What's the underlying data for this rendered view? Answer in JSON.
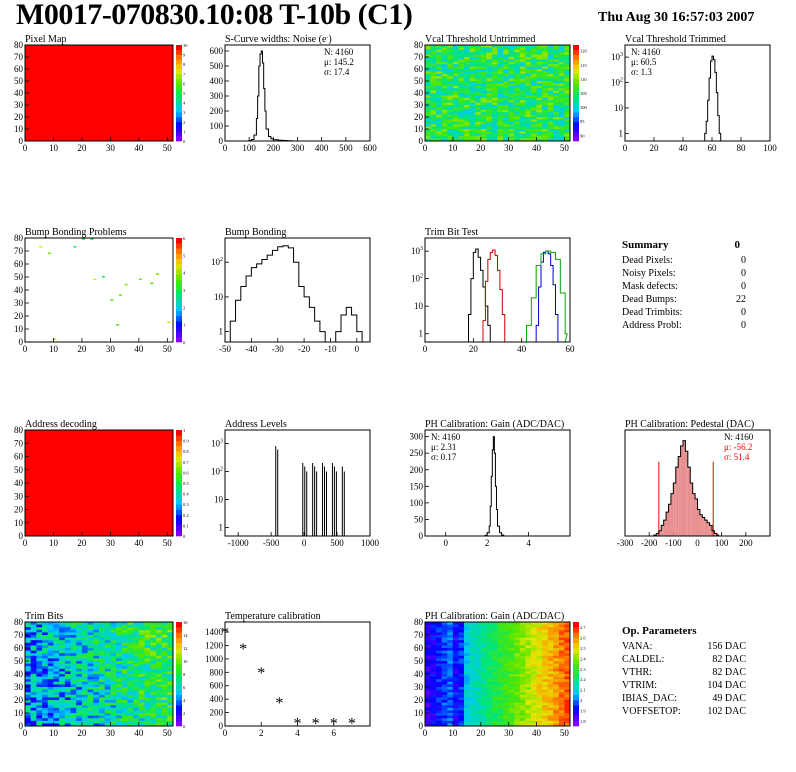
{
  "header": {
    "title": "M0017-070830.10:08 T-10b (C1)",
    "datetime": "Thu Aug 30 16:57:03 2007"
  },
  "colors": {
    "map_red": "#ff0000",
    "hist_line": "#000000",
    "mean_red": "#ff0000",
    "pedestal_fill": "#e89090"
  },
  "chart_data": [
    {
      "id": "pixel-map",
      "type": "heatmap",
      "title": "Pixel Map",
      "x": {
        "ticks": [
          0,
          10,
          20,
          30,
          40,
          50
        ],
        "range": [
          0,
          52
        ]
      },
      "y": {
        "ticks": [
          0,
          10,
          20,
          30,
          40,
          50,
          60,
          70,
          80
        ],
        "range": [
          0,
          80
        ]
      },
      "fill": "uniform",
      "colorbar": {
        "ticks": [
          0,
          1,
          2,
          3,
          4,
          5,
          6,
          7,
          8,
          9,
          10
        ],
        "range": [
          0,
          10
        ]
      }
    },
    {
      "id": "scurve",
      "type": "histogram",
      "title": "S-Curve widths: Noise (e",
      "title_sup": "-",
      "x": {
        "ticks": [
          0,
          100,
          200,
          300,
          400,
          500,
          600
        ],
        "range": [
          0,
          600
        ]
      },
      "y": {
        "ticks": [
          0,
          100,
          200,
          300,
          400,
          500,
          600
        ],
        "range": [
          0,
          640
        ]
      },
      "stats": [
        {
          "label": "N:",
          "value": "4160"
        },
        {
          "label": "μ:",
          "value": "145.2"
        },
        {
          "label": "σ:",
          "value": "17.4"
        }
      ],
      "bins_x": [
        100,
        110,
        120,
        130,
        135,
        140,
        145,
        150,
        155,
        160,
        165,
        170,
        180,
        190,
        200,
        220,
        240,
        260,
        280
      ],
      "bins_y": [
        3,
        10,
        40,
        150,
        300,
        500,
        580,
        600,
        520,
        350,
        200,
        80,
        30,
        15,
        8,
        5,
        3,
        2,
        0
      ]
    },
    {
      "id": "vcal-untrimmed",
      "type": "heatmap",
      "title": "Vcal Threshold Untrimmed",
      "x": {
        "ticks": [
          0,
          10,
          20,
          30,
          40,
          50
        ],
        "range": [
          0,
          52
        ]
      },
      "y": {
        "ticks": [
          0,
          10,
          20,
          30,
          40,
          50,
          60,
          70,
          80
        ],
        "range": [
          0,
          80
        ]
      },
      "fill": "noise-green",
      "colorbar": {
        "ticks": [
          90,
          95,
          100,
          105,
          110,
          115,
          120
        ],
        "range": [
          88,
          122
        ]
      }
    },
    {
      "id": "vcal-trimmed",
      "type": "histogram",
      "title": "Vcal Threshold Trimmed",
      "x": {
        "ticks": [
          0,
          20,
          40,
          60,
          80,
          100
        ],
        "range": [
          0,
          100
        ]
      },
      "y": {
        "ticks": [
          1,
          10,
          100,
          1000
        ],
        "log": true,
        "range": [
          0.5,
          3000
        ]
      },
      "stats": [
        {
          "label": "N:",
          "value": "4160"
        },
        {
          "label": "μ:",
          "value": "60.5"
        },
        {
          "label": "σ:",
          "value": "1.3"
        }
      ],
      "bins_x": [
        55,
        56,
        57,
        58,
        59,
        60,
        61,
        62,
        63,
        64,
        65,
        66
      ],
      "bins_y": [
        1,
        3,
        20,
        150,
        700,
        1100,
        800,
        250,
        40,
        5,
        1,
        0
      ]
    },
    {
      "id": "bump-problems",
      "type": "heatmap",
      "title": "Bump Bonding Problems",
      "x": {
        "ticks": [
          0,
          10,
          20,
          30,
          40,
          50
        ],
        "range": [
          0,
          52
        ]
      },
      "y": {
        "ticks": [
          0,
          10,
          20,
          30,
          40,
          50,
          60,
          70,
          80
        ],
        "range": [
          0,
          80
        ]
      },
      "fill": "sparse",
      "colorbar": {
        "ticks": [
          0,
          1,
          2,
          3,
          4,
          5,
          6
        ],
        "range": [
          0,
          6
        ]
      },
      "points": [
        [
          5,
          73
        ],
        [
          8,
          68
        ],
        [
          17,
          73
        ],
        [
          20,
          79
        ],
        [
          23,
          79
        ],
        [
          27,
          50
        ],
        [
          24,
          48
        ],
        [
          46,
          52
        ],
        [
          40,
          48
        ],
        [
          35,
          44
        ],
        [
          33,
          36
        ],
        [
          44,
          45
        ],
        [
          50,
          15
        ],
        [
          30,
          32
        ],
        [
          32,
          13
        ],
        [
          10,
          2
        ]
      ]
    },
    {
      "id": "bump-bonding",
      "type": "histogram",
      "title": "Bump Bonding",
      "x": {
        "ticks": [
          -50,
          -40,
          -30,
          -20,
          -10,
          0
        ],
        "range": [
          -50,
          5
        ]
      },
      "y": {
        "ticks": [
          1,
          10,
          100
        ],
        "log": true,
        "range": [
          0.5,
          500
        ]
      },
      "bins_x": [
        -48,
        -46,
        -44,
        -42,
        -40,
        -38,
        -36,
        -34,
        -32,
        -30,
        -28,
        -26,
        -24,
        -22,
        -20,
        -18,
        -16,
        -14,
        -12,
        -10,
        -8,
        -6,
        -4,
        -2,
        0,
        2
      ],
      "bins_y": [
        2,
        8,
        20,
        40,
        70,
        90,
        120,
        160,
        220,
        280,
        300,
        260,
        100,
        20,
        10,
        5,
        2,
        1,
        0,
        0,
        1,
        3,
        5,
        3,
        1,
        0
      ]
    },
    {
      "id": "trim-bit-test",
      "type": "histogram",
      "title": "Trim Bit Test",
      "x": {
        "ticks": [
          0,
          20,
          40,
          60
        ],
        "range": [
          0,
          60
        ]
      },
      "y": {
        "ticks": [
          1,
          10,
          100,
          1000
        ],
        "log": true,
        "range": [
          0.5,
          3000
        ]
      },
      "series": [
        {
          "name": "",
          "color": "#000000",
          "bins_x": [
            18,
            19,
            20,
            21,
            22,
            23,
            24,
            25,
            26,
            27
          ],
          "bins_y": [
            5,
            100,
            900,
            1200,
            600,
            200,
            50,
            10,
            2,
            0
          ]
        },
        {
          "name": "",
          "color": "#cc0000",
          "bins_x": [
            24,
            25,
            26,
            27,
            28,
            29,
            30,
            31,
            32,
            33
          ],
          "bins_y": [
            3,
            80,
            500,
            900,
            1100,
            700,
            200,
            40,
            5,
            0
          ]
        },
        {
          "name": "",
          "color": "#0000cc",
          "bins_x": [
            46,
            47,
            48,
            49,
            50,
            51,
            52,
            53,
            54,
            55
          ],
          "bins_y": [
            2,
            50,
            400,
            900,
            1000,
            800,
            300,
            60,
            5,
            0
          ]
        },
        {
          "name": "",
          "color": "#00aa00",
          "bins_x": [
            42,
            44,
            46,
            48,
            50,
            52,
            54,
            56,
            58
          ],
          "bins_y": [
            2,
            20,
            300,
            800,
            1000,
            900,
            500,
            30,
            1
          ]
        }
      ]
    },
    {
      "id": "summary",
      "type": "table",
      "title": "Summary",
      "title_value": "0",
      "rows": [
        {
          "label": "Dead Pixels:",
          "value": "0"
        },
        {
          "label": "Noisy Pixels:",
          "value": "0"
        },
        {
          "label": "Mask defects:",
          "value": "0"
        },
        {
          "label": "Dead Bumps:",
          "value": "22"
        },
        {
          "label": "Dead Trimbits:",
          "value": "0"
        },
        {
          "label": "Address Probl:",
          "value": "0"
        }
      ]
    },
    {
      "id": "address-decoding",
      "type": "heatmap",
      "title": "Address decoding",
      "x": {
        "ticks": [
          0,
          10,
          20,
          30,
          40,
          50
        ],
        "range": [
          0,
          52
        ]
      },
      "y": {
        "ticks": [
          0,
          10,
          20,
          30,
          40,
          50,
          60,
          70,
          80
        ],
        "range": [
          0,
          80
        ]
      },
      "fill": "uniform",
      "colorbar": {
        "ticks": [
          0,
          0.1,
          0.2,
          0.3,
          0.4,
          0.5,
          0.6,
          0.7,
          0.8,
          0.9,
          1
        ],
        "range": [
          0,
          1
        ]
      }
    },
    {
      "id": "address-levels",
      "type": "histogram",
      "title": "Address Levels",
      "x": {
        "ticks": [
          -1000,
          -500,
          0,
          500,
          1000
        ],
        "range": [
          -1200,
          1000
        ]
      },
      "y": {
        "ticks": [
          1,
          10,
          100,
          1000
        ],
        "log": true,
        "range": [
          0.5,
          3000
        ]
      },
      "spikes": [
        {
          "x": -430,
          "y": 800
        },
        {
          "x": -400,
          "y": 600
        },
        {
          "x": -20,
          "y": 200
        },
        {
          "x": 10,
          "y": 150
        },
        {
          "x": 40,
          "y": 100
        },
        {
          "x": 130,
          "y": 200
        },
        {
          "x": 160,
          "y": 150
        },
        {
          "x": 190,
          "y": 100
        },
        {
          "x": 280,
          "y": 200
        },
        {
          "x": 310,
          "y": 150
        },
        {
          "x": 340,
          "y": 100
        },
        {
          "x": 430,
          "y": 200
        },
        {
          "x": 460,
          "y": 150
        },
        {
          "x": 490,
          "y": 100
        },
        {
          "x": 580,
          "y": 150
        },
        {
          "x": 610,
          "y": 100
        }
      ]
    },
    {
      "id": "ph-gain",
      "type": "histogram",
      "title": "PH Calibration: Gain (ADC/DAC)",
      "x": {
        "ticks": [
          0,
          2,
          4
        ],
        "range": [
          -1,
          6
        ]
      },
      "y": {
        "ticks": [
          0,
          50,
          100,
          150,
          200,
          250,
          300
        ],
        "range": [
          0,
          320
        ]
      },
      "stats": [
        {
          "label": "N:",
          "value": "4160"
        },
        {
          "label": "μ:",
          "value": "2.31"
        },
        {
          "label": "σ:",
          "value": "0.17"
        }
      ],
      "bins_x": [
        1.9,
        2.0,
        2.1,
        2.15,
        2.2,
        2.25,
        2.3,
        2.35,
        2.4,
        2.45,
        2.5,
        2.6,
        2.7,
        2.8
      ],
      "bins_y": [
        2,
        10,
        30,
        90,
        180,
        260,
        300,
        250,
        150,
        80,
        30,
        10,
        3,
        0
      ]
    },
    {
      "id": "ph-pedestal",
      "type": "histogram",
      "title": "PH Calibration: Pedestal (DAC)",
      "x": {
        "ticks": [
          -300,
          -200,
          -100,
          0,
          100,
          200
        ],
        "range": [
          -300,
          300
        ]
      },
      "y": {
        "ticks": [],
        "range": [
          0,
          200
        ]
      },
      "stats": [
        {
          "label": "N:",
          "value": "4160",
          "color": "#000000"
        },
        {
          "label": "μ:",
          "value": "-56.2",
          "color": "#ff0000"
        },
        {
          "label": "σ:",
          "value": "51.4",
          "color": "#ff0000"
        }
      ],
      "mean_lines": [
        -160,
        65
      ],
      "bins_x": [
        -180,
        -170,
        -160,
        -150,
        -140,
        -130,
        -120,
        -110,
        -100,
        -90,
        -80,
        -70,
        -60,
        -50,
        -40,
        -30,
        -20,
        -10,
        0,
        10,
        20,
        30,
        40,
        50,
        60,
        70,
        80
      ],
      "bins_y": [
        2,
        5,
        10,
        20,
        30,
        45,
        60,
        80,
        100,
        130,
        150,
        170,
        180,
        160,
        130,
        100,
        80,
        70,
        50,
        40,
        35,
        30,
        25,
        20,
        10,
        5,
        2
      ]
    },
    {
      "id": "trim-bits",
      "type": "heatmap",
      "title": "Trim Bits",
      "x": {
        "ticks": [
          0,
          10,
          20,
          30,
          40,
          50
        ],
        "range": [
          0,
          52
        ]
      },
      "y": {
        "ticks": [
          0,
          10,
          20,
          30,
          40,
          50,
          60,
          70,
          80
        ],
        "range": [
          0,
          80
        ]
      },
      "fill": "noise-trim",
      "colorbar": {
        "ticks": [
          0,
          2,
          4,
          6,
          8,
          10,
          12,
          14,
          16
        ],
        "range": [
          0,
          16
        ]
      }
    },
    {
      "id": "temperature-calibration",
      "type": "scatter",
      "title": "Temperature calibration",
      "x": {
        "ticks": [
          0,
          2,
          4,
          6
        ],
        "range": [
          0,
          8
        ]
      },
      "y": {
        "ticks": [
          0,
          200,
          400,
          600,
          800,
          1000,
          1200,
          1400
        ],
        "range": [
          0,
          1550
        ]
      },
      "points": [
        [
          0,
          1420
        ],
        [
          1,
          1180
        ],
        [
          2,
          820
        ],
        [
          3,
          370
        ],
        [
          4,
          70
        ],
        [
          5,
          70
        ],
        [
          6,
          70
        ],
        [
          7,
          70
        ]
      ]
    },
    {
      "id": "ph-gain-map",
      "type": "heatmap",
      "title": "PH Calibration: Gain (ADC/DAC)",
      "x": {
        "ticks": [
          0,
          10,
          20,
          30,
          40,
          50
        ],
        "range": [
          0,
          52
        ]
      },
      "y": {
        "ticks": [
          0,
          10,
          20,
          30,
          40,
          50,
          60,
          70,
          80
        ],
        "range": [
          0,
          80
        ]
      },
      "fill": "gain-gradient",
      "colorbar": {
        "ticks": [
          1.8,
          1.9,
          2,
          2.1,
          2.2,
          2.3,
          2.4,
          2.5,
          2.6,
          2.7
        ],
        "range": [
          1.75,
          2.75
        ]
      }
    },
    {
      "id": "op-parameters",
      "type": "table",
      "title": "Op. Parameters",
      "title_value": "",
      "rows": [
        {
          "label": "VANA:",
          "value": "156 DAC"
        },
        {
          "label": "CALDEL:",
          "value": "82 DAC"
        },
        {
          "label": "VTHR:",
          "value": "82 DAC"
        },
        {
          "label": "VTRIM:",
          "value": "104 DAC"
        },
        {
          "label": "IBIAS_DAC:",
          "value": "49 DAC"
        },
        {
          "label": "VOFFSETOP:",
          "value": "102 DAC"
        }
      ]
    }
  ]
}
